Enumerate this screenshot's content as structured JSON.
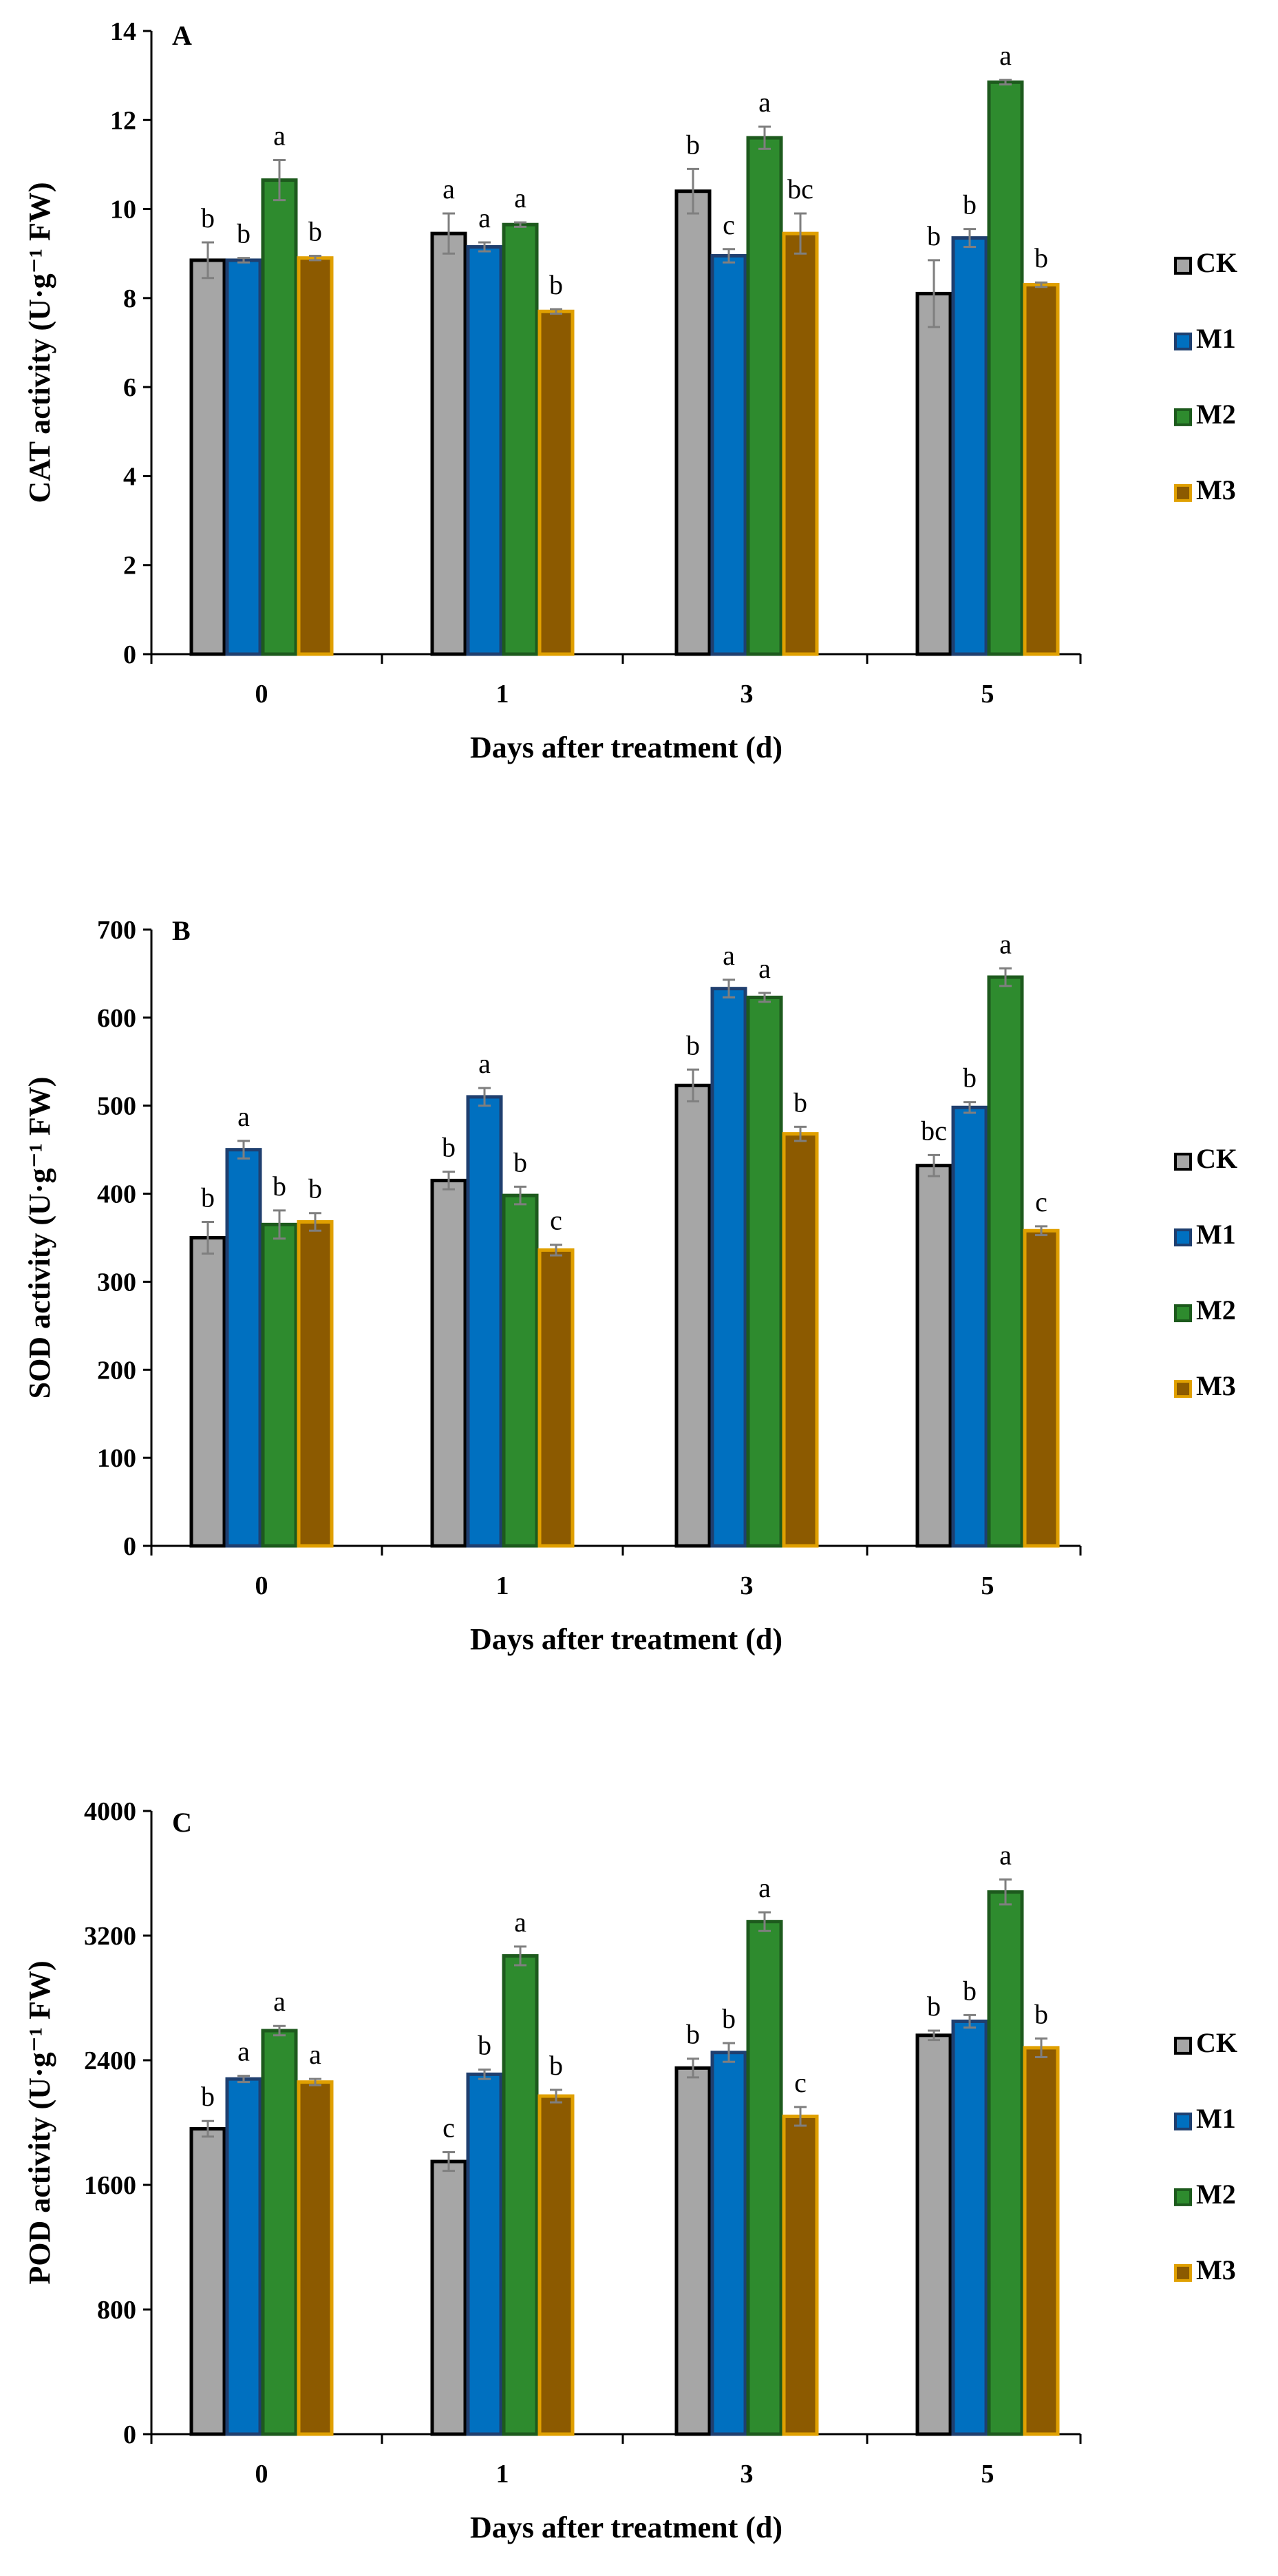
{
  "colors": {
    "CK": "#a6a6a6",
    "M1": "#0070c0",
    "M2": "#2e8b2e",
    "M3": "#8c5a00",
    "M3_border": "#e0a000",
    "error_bar": "#7f7f7f",
    "axis": "#000000"
  },
  "chart_data": [
    {
      "type": "bar",
      "panel": "A",
      "categories": [
        "0",
        "1",
        "3",
        "5"
      ],
      "xlabel": "Days after treatment (d)",
      "ylabel": "CAT activity (U·g⁻¹ FW)",
      "ylim": [
        0,
        14
      ],
      "yticks": [
        0,
        2,
        4,
        6,
        8,
        10,
        12,
        14
      ],
      "series": [
        {
          "name": "CK",
          "values": [
            8.85,
            9.45,
            10.4,
            8.1
          ],
          "errors": [
            0.4,
            0.45,
            0.5,
            0.75
          ],
          "letters": [
            "b",
            "a",
            "b",
            "b"
          ]
        },
        {
          "name": "M1",
          "values": [
            8.85,
            9.15,
            8.95,
            9.35
          ],
          "errors": [
            0.05,
            0.1,
            0.15,
            0.2
          ],
          "letters": [
            "b",
            "a",
            "c",
            "b"
          ]
        },
        {
          "name": "M2",
          "values": [
            10.65,
            9.65,
            11.6,
            12.85
          ],
          "errors": [
            0.45,
            0.05,
            0.25,
            0.05
          ],
          "letters": [
            "a",
            "a",
            "a",
            "a"
          ]
        },
        {
          "name": "M3",
          "values": [
            8.9,
            7.7,
            9.45,
            8.3
          ],
          "errors": [
            0.05,
            0.05,
            0.45,
            0.05
          ],
          "letters": [
            "b",
            "b",
            "bc",
            "b"
          ]
        }
      ]
    },
    {
      "type": "bar",
      "panel": "B",
      "categories": [
        "0",
        "1",
        "3",
        "5"
      ],
      "xlabel": "Days after treatment (d)",
      "ylabel": "SOD activity (U·g⁻¹ FW)",
      "ylim": [
        0,
        700
      ],
      "yticks": [
        0,
        100,
        200,
        300,
        400,
        500,
        600,
        700
      ],
      "series": [
        {
          "name": "CK",
          "values": [
            350,
            415,
            523,
            432
          ],
          "errors": [
            18,
            10,
            18,
            12
          ],
          "letters": [
            "b",
            "b",
            "b",
            "bc"
          ]
        },
        {
          "name": "M1",
          "values": [
            450,
            510,
            633,
            498
          ],
          "errors": [
            10,
            10,
            10,
            6
          ],
          "letters": [
            "a",
            "a",
            "a",
            "b"
          ]
        },
        {
          "name": "M2",
          "values": [
            365,
            398,
            623,
            646
          ],
          "errors": [
            16,
            10,
            5,
            10
          ],
          "letters": [
            "b",
            "b",
            "a",
            "a"
          ]
        },
        {
          "name": "M3",
          "values": [
            368,
            336,
            468,
            358
          ],
          "errors": [
            10,
            6,
            8,
            5
          ],
          "letters": [
            "b",
            "c",
            "b",
            "c"
          ]
        }
      ]
    },
    {
      "type": "bar",
      "panel": "C",
      "categories": [
        "0",
        "1",
        "3",
        "5"
      ],
      "xlabel": "Days after treatment (d)",
      "ylabel": "POD activity (U·g⁻¹ FW)",
      "ylim": [
        0,
        4000
      ],
      "yticks": [
        0,
        800,
        1600,
        2400,
        3200,
        4000
      ],
      "series": [
        {
          "name": "CK",
          "values": [
            1960,
            1750,
            2350,
            2560
          ],
          "errors": [
            50,
            60,
            60,
            30
          ],
          "letters": [
            "b",
            "c",
            "b",
            "b"
          ]
        },
        {
          "name": "M1",
          "values": [
            2280,
            2310,
            2450,
            2650
          ],
          "errors": [
            20,
            30,
            60,
            40
          ],
          "letters": [
            "a",
            "b",
            "b",
            "b"
          ]
        },
        {
          "name": "M2",
          "values": [
            2590,
            3070,
            3290,
            3480
          ],
          "errors": [
            30,
            60,
            60,
            80
          ],
          "letters": [
            "a",
            "a",
            "a",
            "a"
          ]
        },
        {
          "name": "M3",
          "values": [
            2260,
            2170,
            2040,
            2480
          ],
          "errors": [
            20,
            40,
            60,
            60
          ],
          "letters": [
            "a",
            "b",
            "c",
            "b"
          ]
        }
      ]
    }
  ]
}
